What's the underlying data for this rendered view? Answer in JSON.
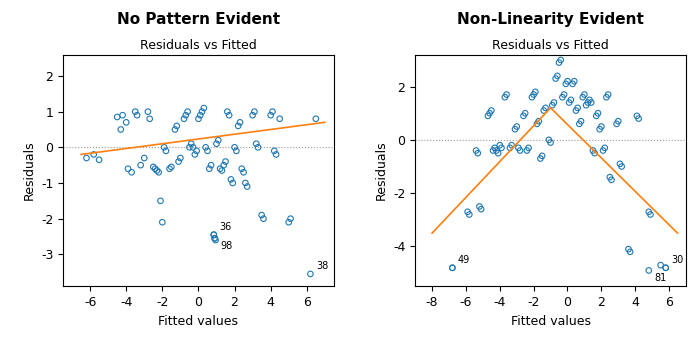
{
  "chart_data": [
    {
      "type": "scatter",
      "title": "No Pattern Evident",
      "subtitle": "Residuals vs Fitted",
      "xlabel": "Fitted values",
      "ylabel": "Residuals",
      "xlim": [
        -7.5,
        7.5
      ],
      "ylim": [
        -3.9,
        2.6
      ],
      "xticks": [
        -6,
        -4,
        -2,
        0,
        2,
        4,
        6
      ],
      "yticks": [
        -3,
        -2,
        -1,
        0,
        1,
        2
      ],
      "hline": 0,
      "x": [
        -6.2,
        -5.8,
        -5.5,
        -4.5,
        -4.2,
        -4.3,
        -4.0,
        -3.9,
        -3.7,
        -3.5,
        -3.4,
        -3.2,
        -3.0,
        -2.8,
        -2.7,
        -2.5,
        -2.4,
        -2.3,
        -2.2,
        -2.1,
        -2.0,
        -1.9,
        -1.8,
        -1.6,
        -1.5,
        -1.3,
        -1.2,
        -1.1,
        -1.0,
        -0.8,
        -0.7,
        -0.6,
        -0.5,
        -0.4,
        -0.3,
        -0.2,
        -0.1,
        0.0,
        0.1,
        0.2,
        0.3,
        0.4,
        0.5,
        0.6,
        0.7,
        0.85,
        0.9,
        0.95,
        1.0,
        1.1,
        1.2,
        1.3,
        1.4,
        1.5,
        1.6,
        1.7,
        1.8,
        1.9,
        2.0,
        2.1,
        2.2,
        2.3,
        2.4,
        2.5,
        2.6,
        2.7,
        3.0,
        3.1,
        3.2,
        3.3,
        3.5,
        3.6,
        4.0,
        4.1,
        4.2,
        4.3,
        4.5,
        5.0,
        5.1,
        6.5
      ],
      "values": [
        -0.3,
        -0.2,
        -0.35,
        0.85,
        0.9,
        0.5,
        0.7,
        -0.6,
        -0.7,
        1.0,
        0.9,
        -0.5,
        -0.3,
        1.0,
        0.8,
        -0.55,
        -0.6,
        -0.65,
        -0.7,
        -1.5,
        -2.1,
        0.0,
        -0.1,
        -0.6,
        -0.55,
        0.5,
        0.6,
        -0.4,
        -0.3,
        0.8,
        0.9,
        1.0,
        0.0,
        0.1,
        0.0,
        -0.2,
        -0.1,
        0.8,
        0.9,
        1.0,
        1.1,
        0.0,
        -0.1,
        -0.6,
        -0.5,
        -2.45,
        -2.55,
        -2.6,
        0.1,
        0.2,
        -0.6,
        -0.65,
        -0.5,
        -0.4,
        1.0,
        0.9,
        -0.9,
        -1.0,
        0.0,
        -0.1,
        0.6,
        0.7,
        -0.6,
        -0.7,
        -1.0,
        -1.1,
        0.9,
        1.0,
        0.1,
        0.0,
        -1.9,
        -2.0,
        0.9,
        1.0,
        -0.1,
        -0.2,
        0.8,
        -2.1,
        -2.0,
        0.8
      ],
      "annotations": [
        {
          "x": 0.85,
          "y": -2.45,
          "text": "36"
        },
        {
          "x": 0.9,
          "y": -2.55,
          "text": "98"
        },
        {
          "x": 6.2,
          "y": -3.55,
          "text": "38"
        }
      ],
      "trend_line": {
        "x": [
          -6.5,
          7.0
        ],
        "y": [
          -0.2,
          0.7
        ]
      }
    },
    {
      "type": "scatter",
      "title": "Non-Linearity Evident",
      "subtitle": "Residuals vs Fitted",
      "xlabel": "Fitted values",
      "ylabel": "Residuals",
      "xlim": [
        -9.0,
        7.0
      ],
      "ylim": [
        -5.5,
        3.2
      ],
      "xticks": [
        -8,
        -6,
        -4,
        -2,
        0,
        2,
        4,
        6
      ],
      "yticks": [
        -4,
        -2,
        0,
        2
      ],
      "hline": 0,
      "x": [
        -6.8,
        -5.9,
        -5.8,
        -5.4,
        -5.3,
        -5.2,
        -5.1,
        -4.7,
        -4.6,
        -4.5,
        -4.4,
        -4.3,
        -4.2,
        -4.1,
        -4.0,
        -3.9,
        -3.7,
        -3.6,
        -3.4,
        -3.3,
        -3.1,
        -3.0,
        -2.9,
        -2.8,
        -2.6,
        -2.5,
        -2.4,
        -2.3,
        -2.1,
        -2.0,
        -1.9,
        -1.8,
        -1.7,
        -1.6,
        -1.5,
        -1.4,
        -1.3,
        -1.1,
        -1.0,
        -0.9,
        -0.8,
        -0.7,
        -0.6,
        -0.5,
        -0.4,
        -0.3,
        -0.2,
        -0.1,
        0.0,
        0.1,
        0.2,
        0.3,
        0.4,
        0.5,
        0.6,
        0.7,
        0.8,
        0.9,
        1.0,
        1.1,
        1.2,
        1.3,
        1.4,
        1.5,
        1.6,
        1.7,
        1.8,
        1.9,
        2.0,
        2.1,
        2.2,
        2.3,
        2.4,
        2.5,
        2.6,
        2.9,
        3.0,
        3.1,
        3.2,
        3.6,
        3.7,
        4.1,
        4.2,
        4.8,
        4.9,
        5.5,
        5.8
      ],
      "values": [
        -4.8,
        -2.7,
        -2.8,
        -0.4,
        -0.5,
        -2.5,
        -2.6,
        0.9,
        1.0,
        1.1,
        -0.4,
        -0.3,
        -0.4,
        -0.5,
        -0.2,
        -0.3,
        1.6,
        1.7,
        -0.3,
        -0.2,
        0.4,
        0.5,
        -0.3,
        -0.4,
        0.9,
        1.0,
        -0.4,
        -0.3,
        1.6,
        1.7,
        1.8,
        0.6,
        0.7,
        -0.7,
        -0.6,
        1.1,
        1.2,
        0.0,
        -0.1,
        1.3,
        1.4,
        2.3,
        2.4,
        2.9,
        3.0,
        1.6,
        1.7,
        2.1,
        2.2,
        1.4,
        1.5,
        2.1,
        2.2,
        1.1,
        1.2,
        0.6,
        0.7,
        1.6,
        1.7,
        1.3,
        1.4,
        1.5,
        1.4,
        -0.4,
        -0.5,
        0.9,
        1.0,
        0.4,
        0.5,
        -0.4,
        -0.3,
        1.6,
        1.7,
        -1.4,
        -1.5,
        0.6,
        0.7,
        -0.9,
        -1.0,
        -4.1,
        -4.2,
        0.9,
        0.8,
        -2.7,
        -2.8,
        -4.7,
        -4.8
      ],
      "annotations": [
        {
          "x": -6.8,
          "y": -4.8,
          "text": "49"
        },
        {
          "x": 4.8,
          "y": -4.9,
          "text": "81"
        },
        {
          "x": 5.8,
          "y": -4.8,
          "text": "30"
        }
      ],
      "trend_line": {
        "x": [
          -8.0,
          -1.0,
          6.5
        ],
        "y": [
          -3.5,
          1.2,
          -3.5
        ]
      }
    }
  ]
}
